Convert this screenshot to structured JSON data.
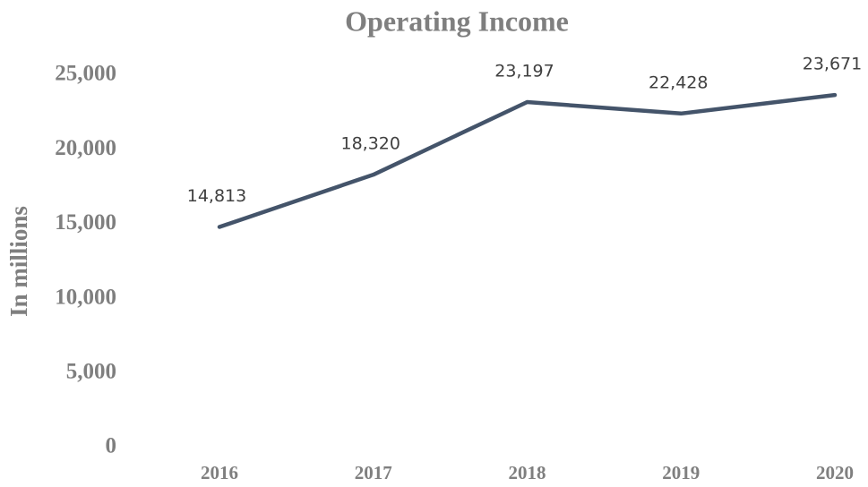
{
  "chart_data": {
    "type": "line",
    "title": "Operating Income",
    "y_label": "In millions",
    "categories": [
      "2016",
      "2017",
      "2018",
      "2019",
      "2020"
    ],
    "values": [
      14813,
      18320,
      23197,
      22428,
      23671
    ],
    "value_labels": [
      "14,813",
      "18,320",
      "23,197",
      "22,428",
      "23,671"
    ],
    "color": "#44546a",
    "ylim": [
      0,
      25000
    ],
    "yticks": [
      0,
      {
        "value": 5000,
        "label": "5,000"
      },
      {
        "value": 10000,
        "label": "10,000"
      },
      {
        "value": 15000,
        "label": "15,000"
      },
      {
        "value": 20000,
        "label": "20,000"
      },
      {
        "value": 25000,
        "label": "25,000"
      }
    ],
    "grid": false
  }
}
